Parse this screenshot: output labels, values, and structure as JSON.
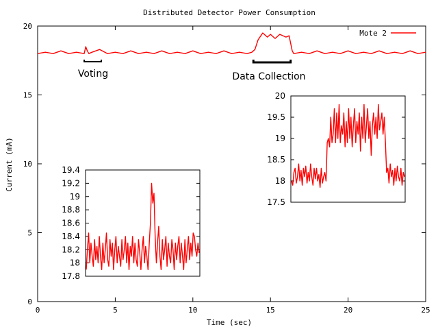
{
  "chart_data": [
    {
      "type": "line",
      "title": "Distributed Detector Power Consumption",
      "xlabel": "Time (sec)",
      "ylabel": "Current (mA)",
      "xlim": [
        0,
        25
      ],
      "ylim": [
        0,
        20
      ],
      "xticks": [
        "0",
        "5",
        "10",
        "15",
        "20",
        "25"
      ],
      "yticks": [
        "0",
        "5",
        "10",
        "15",
        "20"
      ],
      "legend": "top-right",
      "grid": false,
      "color": "#ff0000",
      "series": [
        {
          "name": "Mote 2",
          "x": [
            0,
            0.5,
            1,
            1.5,
            2,
            2.5,
            3,
            3.1,
            3.2,
            3.3,
            3.5,
            4,
            4.5,
            5,
            5.5,
            6,
            6.5,
            7,
            7.5,
            8,
            8.5,
            9,
            9.5,
            10,
            10.5,
            11,
            11.5,
            12,
            12.5,
            13,
            13.5,
            13.8,
            14,
            14.2,
            14.5,
            14.8,
            15,
            15.3,
            15.6,
            16,
            16.2,
            16.4,
            16.5,
            17,
            17.5,
            18,
            18.5,
            19,
            19.5,
            20,
            20.5,
            21,
            21.5,
            22,
            22.5,
            23,
            23.5,
            24,
            24.5,
            25
          ],
          "y": [
            18.0,
            18.1,
            18.0,
            18.2,
            18.0,
            18.1,
            18.0,
            18.5,
            18.2,
            18.0,
            18.1,
            18.3,
            18.0,
            18.1,
            18.0,
            18.2,
            18.0,
            18.1,
            18.0,
            18.2,
            18.0,
            18.1,
            18.0,
            18.2,
            18.0,
            18.1,
            18.0,
            18.2,
            18.0,
            18.1,
            18.0,
            18.1,
            18.3,
            19.0,
            19.5,
            19.2,
            19.4,
            19.1,
            19.4,
            19.2,
            19.3,
            18.2,
            18.0,
            18.1,
            18.0,
            18.2,
            18.0,
            18.1,
            18.0,
            18.2,
            18.0,
            18.1,
            18.0,
            18.2,
            18.0,
            18.1,
            18.0,
            18.2,
            18.0,
            18.1
          ]
        }
      ],
      "annotations": [
        "Voting",
        "Data Collection"
      ],
      "annotation_spans": [
        [
          3,
          4.1
        ],
        [
          13.9,
          16.3
        ]
      ]
    },
    {
      "type": "line",
      "title": "",
      "xlim": [
        0,
        1
      ],
      "ylim": [
        17.8,
        19.4
      ],
      "yticks": [
        "19.4",
        "19.2",
        "19",
        "18.8",
        "18.6",
        "18.4",
        "18.2",
        "18",
        "17.8"
      ],
      "series": [
        {
          "values": [
            17.9,
            18.2,
            18.45,
            18.0,
            18.3,
            18.1,
            17.95,
            18.35,
            18.05,
            18.25,
            18.0,
            18.4,
            18.1,
            17.9,
            18.3,
            18.0,
            18.2,
            18.45,
            18.05,
            17.95,
            18.35,
            18.1,
            18.3,
            17.9,
            18.2,
            18.4,
            18.0,
            18.25,
            18.1,
            17.95,
            18.35,
            18.05,
            18.2,
            18.4,
            18.0,
            18.3,
            17.9,
            18.25,
            18.1,
            18.4,
            18.0,
            18.3,
            18.05,
            17.95,
            18.35,
            18.15,
            17.9,
            18.2,
            18.4,
            18.0,
            18.25,
            18.1,
            17.9,
            18.3,
            18.6,
            19.2,
            18.9,
            19.05,
            18.4,
            18.0,
            18.3,
            18.55,
            18.1,
            17.9,
            18.35,
            18.05,
            18.2,
            18.4,
            17.95,
            18.3,
            18.1,
            18.0,
            18.35,
            18.2,
            17.9,
            18.3,
            18.05,
            18.25,
            18.4,
            18.0,
            18.3,
            18.1,
            17.9,
            18.35,
            18.0,
            18.2,
            18.4,
            18.05,
            18.3,
            18.1,
            18.45,
            18.4,
            18.2,
            18.1,
            18.3,
            18.15
          ]
        }
      ]
    },
    {
      "type": "line",
      "title": "",
      "xlim": [
        0,
        1
      ],
      "ylim": [
        17.5,
        20
      ],
      "yticks": [
        "20",
        "19.5",
        "19",
        "18.5",
        "18",
        "17.5"
      ],
      "series": [
        {
          "values": [
            18.0,
            17.9,
            18.2,
            18.3,
            17.95,
            18.1,
            18.4,
            18.0,
            18.25,
            17.9,
            18.3,
            18.1,
            18.35,
            17.95,
            18.2,
            18.0,
            18.4,
            18.1,
            17.9,
            18.3,
            18.05,
            18.3,
            18.0,
            18.15,
            17.85,
            18.3,
            17.95,
            18.1,
            18.2,
            18.0,
            18.9,
            19.0,
            18.8,
            19.5,
            18.9,
            19.1,
            19.7,
            18.9,
            19.6,
            19.0,
            19.8,
            18.9,
            19.3,
            19.1,
            19.6,
            18.8,
            19.4,
            18.9,
            19.7,
            19.0,
            19.5,
            18.8,
            19.3,
            19.7,
            18.9,
            19.4,
            19.1,
            19.6,
            18.7,
            19.5,
            19.0,
            19.8,
            18.9,
            19.3,
            19.7,
            19.0,
            19.4,
            18.6,
            19.3,
            19.6,
            19.1,
            19.5,
            19.0,
            19.8,
            19.2,
            19.4,
            19.6,
            19.1,
            19.5,
            18.9,
            18.2,
            18.3,
            17.95,
            18.4,
            18.1,
            18.25,
            17.9,
            18.3,
            18.0,
            18.35,
            18.1,
            18.0,
            18.3,
            17.9,
            18.2,
            18.1
          ]
        }
      ]
    }
  ]
}
